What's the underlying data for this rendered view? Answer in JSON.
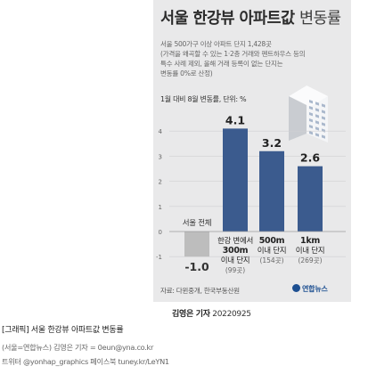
{
  "chart_data": {
    "type": "bar",
    "title_bold": "서울 한강뷰 아파트값",
    "title_light": "변동률",
    "subtitle": [
      "서울 500가구 이상 아파트 단지 1,428곳",
      "(가격을 왜곡할 수 있는 1·2층 거래와 펜트하우스 등의",
      "특수 사례 제외, 올해 거래 등록이 없는 단지는",
      "변동률 0%로 산정)"
    ],
    "unit_label": "1월 대비 8월 변동률, 단위: %",
    "ylim": [
      -1.5,
      4.5
    ],
    "y_ticks": [
      -1,
      0,
      1,
      2,
      3,
      4
    ],
    "categories": [
      {
        "lines": [
          "서울 전체"
        ],
        "count": ""
      },
      {
        "lines": [
          "한강 변에서",
          "300m",
          "이내 단지"
        ],
        "count": "(99곳)"
      },
      {
        "lines": [
          "500m",
          "이내 단지"
        ],
        "count": "(154곳)"
      },
      {
        "lines": [
          "1km",
          "이내 단지"
        ],
        "count": "(269곳)"
      }
    ],
    "values": [
      -1.0,
      4.1,
      3.2,
      2.6
    ],
    "value_labels": [
      "-1.0",
      "4.1",
      "3.2",
      "2.6"
    ],
    "colors": {
      "positive": "#3b5b8e",
      "negative": "#bdbdbd"
    },
    "source": "자료: 다윈중개, 한국부동산원",
    "logo": "연합뉴스"
  },
  "byline": {
    "author": "김영은 기자",
    "date": "20220925"
  },
  "caption": "[그래픽] 서울 한강뷰 아파트값 변동률",
  "credits": [
    "(서울=연합뉴스) 김영은 기자 = 0eun@yna.co.kr",
    "트위터 @yonhap_graphics 페이스북 tuney.kr/LeYN1"
  ]
}
